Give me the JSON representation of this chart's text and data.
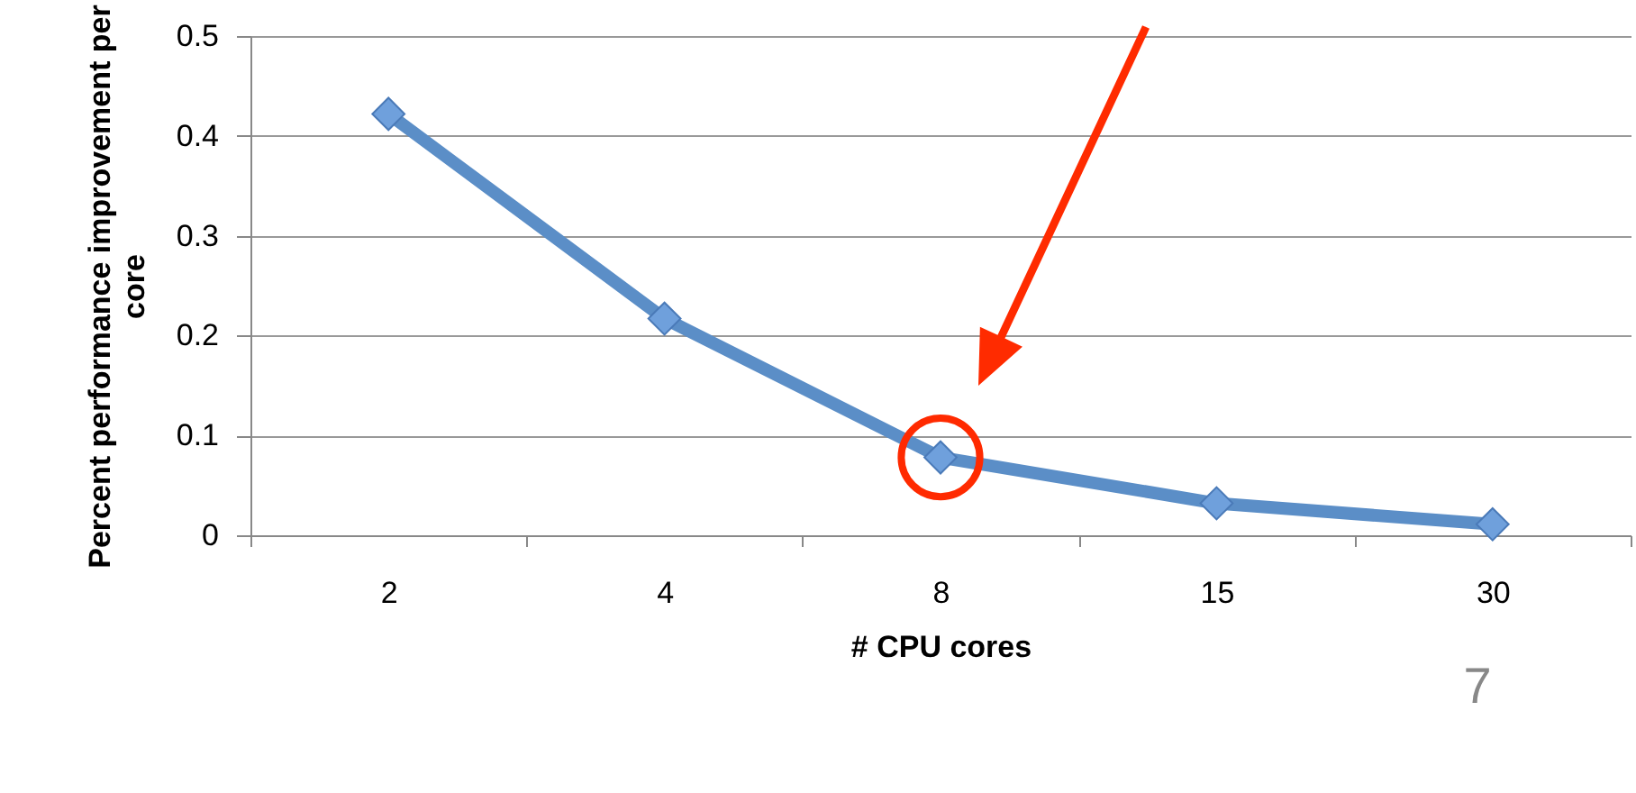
{
  "chart_data": {
    "type": "line",
    "categories": [
      "2",
      "4",
      "8",
      "15",
      "30"
    ],
    "series": [
      {
        "color": "#5b8ec7",
        "values": [
          0.422,
          0.217,
          0.078,
          0.032,
          0.011
        ]
      }
    ],
    "xlabel": "# CPU cores",
    "ylabel": "Percent performance improvement per core",
    "ylim": [
      0,
      0.5
    ],
    "yticks": [
      0,
      0.1,
      0.2,
      0.3,
      0.4,
      0.5
    ],
    "grid": "y",
    "marker": "diamond",
    "line_style": "solid",
    "annotations": [
      "7"
    ]
  }
}
